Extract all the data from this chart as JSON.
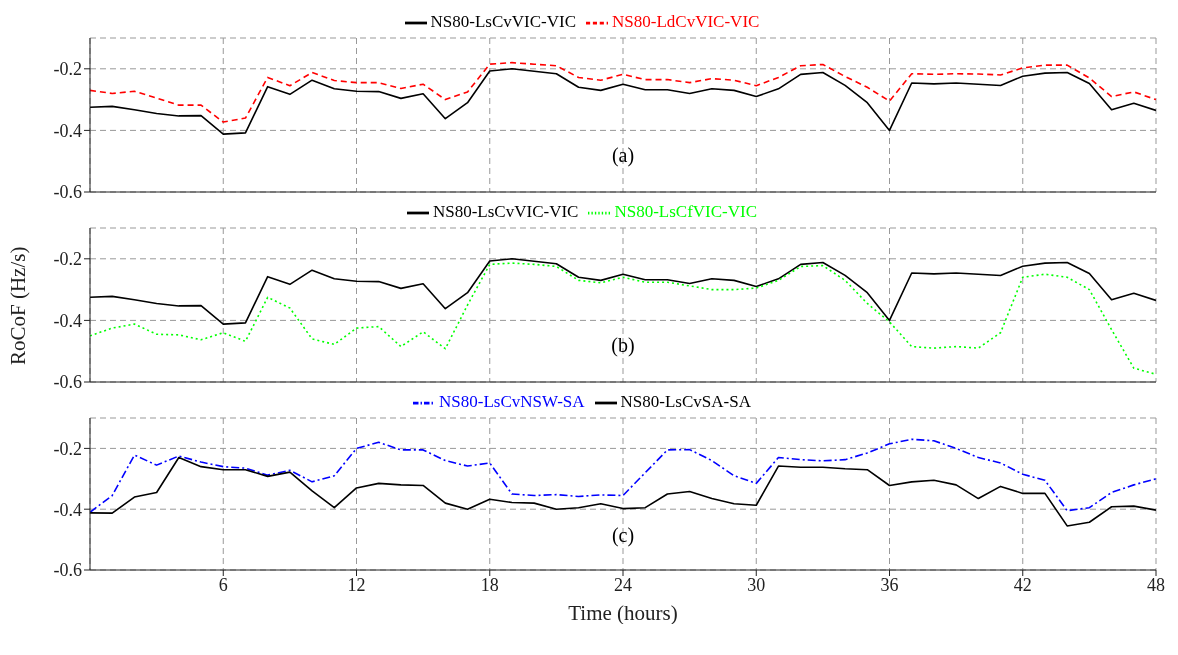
{
  "chart_data": [
    {
      "type": "line",
      "annotations": [
        "(a)"
      ],
      "x": [
        0,
        1,
        2,
        3,
        4,
        5,
        6,
        7,
        8,
        9,
        10,
        11,
        12,
        13,
        14,
        15,
        16,
        17,
        18,
        19,
        20,
        21,
        22,
        23,
        24,
        25,
        26,
        27,
        28,
        29,
        30,
        31,
        32,
        33,
        34,
        35,
        36,
        37,
        38,
        39,
        40,
        41,
        42,
        43,
        44,
        45,
        46,
        47,
        48
      ],
      "xlim": [
        0,
        48
      ],
      "xticks": [
        6,
        12,
        18,
        24,
        30,
        36,
        42,
        48
      ],
      "ylim": [
        -0.6,
        -0.1
      ],
      "yticks": [
        -0.6,
        -0.4,
        -0.2
      ],
      "grid": true,
      "legend": "top",
      "tick_labels": "y",
      "marker": "none",
      "series": [
        {
          "name": "NS80-LsCvVIC-VIC",
          "color": "#000000",
          "line_style": "solid",
          "values": [
            -0.325,
            -0.322,
            -0.333,
            -0.345,
            -0.353,
            -0.352,
            -0.412,
            -0.408,
            -0.258,
            -0.283,
            -0.237,
            -0.265,
            -0.273,
            -0.274,
            -0.296,
            -0.281,
            -0.362,
            -0.31,
            -0.207,
            -0.2,
            -0.208,
            -0.216,
            -0.26,
            -0.27,
            -0.25,
            -0.268,
            -0.268,
            -0.28,
            -0.265,
            -0.27,
            -0.29,
            -0.265,
            -0.218,
            -0.212,
            -0.254,
            -0.31,
            -0.4,
            -0.246,
            -0.249,
            -0.246,
            -0.25,
            -0.254,
            -0.224,
            -0.214,
            -0.212,
            -0.248,
            -0.333,
            -0.312,
            -0.335
          ]
        },
        {
          "name": "NS80-LdCvVIC-VIC",
          "color": "#ff0000",
          "line_style": "dashed",
          "values": [
            -0.27,
            -0.28,
            -0.273,
            -0.295,
            -0.318,
            -0.318,
            -0.373,
            -0.36,
            -0.228,
            -0.255,
            -0.212,
            -0.238,
            -0.245,
            -0.245,
            -0.264,
            -0.25,
            -0.3,
            -0.275,
            -0.185,
            -0.18,
            -0.185,
            -0.19,
            -0.228,
            -0.237,
            -0.218,
            -0.235,
            -0.235,
            -0.245,
            -0.232,
            -0.237,
            -0.255,
            -0.228,
            -0.19,
            -0.186,
            -0.225,
            -0.26,
            -0.305,
            -0.216,
            -0.218,
            -0.216,
            -0.217,
            -0.22,
            -0.197,
            -0.188,
            -0.188,
            -0.23,
            -0.29,
            -0.275,
            -0.3
          ]
        }
      ]
    },
    {
      "type": "line",
      "ylabel": "RoCoF (Hz/s)",
      "annotations": [
        "(b)"
      ],
      "x": [
        0,
        1,
        2,
        3,
        4,
        5,
        6,
        7,
        8,
        9,
        10,
        11,
        12,
        13,
        14,
        15,
        16,
        17,
        18,
        19,
        20,
        21,
        22,
        23,
        24,
        25,
        26,
        27,
        28,
        29,
        30,
        31,
        32,
        33,
        34,
        35,
        36,
        37,
        38,
        39,
        40,
        41,
        42,
        43,
        44,
        45,
        46,
        47,
        48
      ],
      "xlim": [
        0,
        48
      ],
      "xticks": [
        6,
        12,
        18,
        24,
        30,
        36,
        42,
        48
      ],
      "ylim": [
        -0.6,
        -0.1
      ],
      "yticks": [
        -0.6,
        -0.4,
        -0.2
      ],
      "grid": true,
      "legend": "top",
      "tick_labels": "y",
      "marker": "none",
      "series": [
        {
          "name": "NS80-LsCvVIC-VIC",
          "color": "#000000",
          "line_style": "solid",
          "values": [
            -0.325,
            -0.322,
            -0.333,
            -0.345,
            -0.353,
            -0.352,
            -0.412,
            -0.408,
            -0.258,
            -0.283,
            -0.237,
            -0.265,
            -0.273,
            -0.274,
            -0.296,
            -0.281,
            -0.362,
            -0.31,
            -0.207,
            -0.2,
            -0.208,
            -0.216,
            -0.26,
            -0.27,
            -0.25,
            -0.268,
            -0.268,
            -0.28,
            -0.265,
            -0.27,
            -0.29,
            -0.265,
            -0.218,
            -0.212,
            -0.254,
            -0.31,
            -0.4,
            -0.246,
            -0.249,
            -0.246,
            -0.25,
            -0.254,
            -0.224,
            -0.214,
            -0.212,
            -0.248,
            -0.333,
            -0.312,
            -0.335
          ]
        },
        {
          "name": "NS80-LsCfVIC-VIC",
          "color": "#00ff00",
          "line_style": "dotted",
          "values": [
            -0.45,
            -0.425,
            -0.412,
            -0.445,
            -0.447,
            -0.463,
            -0.44,
            -0.468,
            -0.325,
            -0.36,
            -0.46,
            -0.478,
            -0.425,
            -0.42,
            -0.485,
            -0.437,
            -0.492,
            -0.35,
            -0.218,
            -0.214,
            -0.218,
            -0.225,
            -0.27,
            -0.278,
            -0.26,
            -0.276,
            -0.276,
            -0.288,
            -0.3,
            -0.3,
            -0.295,
            -0.27,
            -0.225,
            -0.222,
            -0.27,
            -0.345,
            -0.405,
            -0.485,
            -0.49,
            -0.485,
            -0.49,
            -0.44,
            -0.26,
            -0.25,
            -0.26,
            -0.3,
            -0.43,
            -0.555,
            -0.575
          ]
        }
      ]
    },
    {
      "type": "line",
      "xlabel": "Time (hours)",
      "annotations": [
        "(c)"
      ],
      "x": [
        0,
        1,
        2,
        3,
        4,
        5,
        6,
        7,
        8,
        9,
        10,
        11,
        12,
        13,
        14,
        15,
        16,
        17,
        18,
        19,
        20,
        21,
        22,
        23,
        24,
        25,
        26,
        27,
        28,
        29,
        30,
        31,
        32,
        33,
        34,
        35,
        36,
        37,
        38,
        39,
        40,
        41,
        42,
        43,
        44,
        45,
        46,
        47,
        48
      ],
      "xlim": [
        0,
        48
      ],
      "xticks": [
        6,
        12,
        18,
        24,
        30,
        36,
        42,
        48
      ],
      "ylim": [
        -0.6,
        -0.1
      ],
      "yticks": [
        -0.6,
        -0.4,
        -0.2
      ],
      "grid": true,
      "legend": "top",
      "marker": "none",
      "series": [
        {
          "name": "NS80-LsCvNSW-SA",
          "color": "#0000ff",
          "line_style": "dashdot",
          "values": [
            -0.41,
            -0.355,
            -0.222,
            -0.255,
            -0.225,
            -0.245,
            -0.26,
            -0.265,
            -0.288,
            -0.272,
            -0.31,
            -0.29,
            -0.2,
            -0.18,
            -0.205,
            -0.205,
            -0.24,
            -0.258,
            -0.248,
            -0.35,
            -0.355,
            -0.352,
            -0.358,
            -0.353,
            -0.355,
            -0.28,
            -0.205,
            -0.204,
            -0.24,
            -0.29,
            -0.315,
            -0.23,
            -0.237,
            -0.241,
            -0.237,
            -0.215,
            -0.185,
            -0.17,
            -0.175,
            -0.2,
            -0.23,
            -0.248,
            -0.285,
            -0.305,
            -0.405,
            -0.395,
            -0.345,
            -0.32,
            -0.3
          ]
        },
        {
          "name": "NS80-LsCvSA-SA",
          "color": "#000000",
          "line_style": "solid",
          "values": [
            -0.412,
            -0.413,
            -0.36,
            -0.345,
            -0.23,
            -0.26,
            -0.27,
            -0.27,
            -0.292,
            -0.278,
            -0.34,
            -0.395,
            -0.33,
            -0.315,
            -0.32,
            -0.322,
            -0.38,
            -0.4,
            -0.367,
            -0.378,
            -0.38,
            -0.4,
            -0.395,
            -0.382,
            -0.398,
            -0.395,
            -0.35,
            -0.342,
            -0.365,
            -0.382,
            -0.387,
            -0.258,
            -0.262,
            -0.262,
            -0.267,
            -0.27,
            -0.322,
            -0.31,
            -0.305,
            -0.32,
            -0.365,
            -0.325,
            -0.348,
            -0.348,
            -0.455,
            -0.443,
            -0.392,
            -0.39,
            -0.403
          ]
        }
      ]
    }
  ]
}
